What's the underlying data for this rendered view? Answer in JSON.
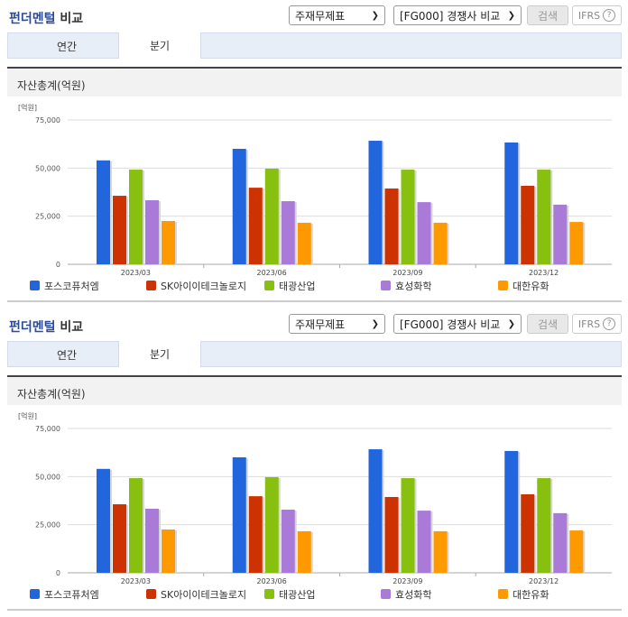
{
  "panels": [
    {
      "title_part1": "펀더멘털",
      "title_part2": "비교",
      "select_statement": "주재무제표",
      "select_group": "[FG000] 경쟁사 비교",
      "search_label": "검색",
      "ifrs_label": "IFRS",
      "help_icon": "?",
      "tabs": [
        {
          "label": "연간",
          "active": false
        },
        {
          "label": "분기",
          "active": true
        }
      ],
      "section_title": "자산총계(억원)",
      "unit_label": "[억원]"
    },
    {
      "title_part1": "펀더멘털",
      "title_part2": "비교",
      "select_statement": "주재무제표",
      "select_group": "[FG000] 경쟁사 비교",
      "search_label": "검색",
      "ifrs_label": "IFRS",
      "help_icon": "?",
      "tabs": [
        {
          "label": "연간",
          "active": false
        },
        {
          "label": "분기",
          "active": true
        }
      ],
      "section_title": "자산총계(억원)",
      "unit_label": "[억원]"
    }
  ],
  "chart_data": [
    {
      "type": "bar",
      "title": "자산총계(억원)",
      "ylabel": "[억원]",
      "xlabel": "",
      "categories": [
        "2023/03",
        "2023/06",
        "2023/09",
        "2023/12"
      ],
      "yticks": [
        "0",
        "25,000",
        "50,000",
        "75,000"
      ],
      "ylim": [
        0,
        75000
      ],
      "grid": true,
      "legend_position": "bottom",
      "series": [
        {
          "name": "포스코퓨처엠",
          "color": "#2266dd",
          "values": [
            54000,
            60000,
            64200,
            63300
          ]
        },
        {
          "name": "SK아이이테크놀로지",
          "color": "#cc3300",
          "values": [
            35600,
            39800,
            39400,
            40800
          ]
        },
        {
          "name": "태광산업",
          "color": "#88c010",
          "values": [
            49200,
            49700,
            49200,
            49200
          ]
        },
        {
          "name": "효성화학",
          "color": "#aa7ad8",
          "values": [
            33300,
            32800,
            32300,
            31000
          ]
        },
        {
          "name": "대한유화",
          "color": "#ff9900",
          "values": [
            22500,
            21600,
            21600,
            22000
          ]
        }
      ]
    },
    {
      "type": "bar",
      "title": "자산총계(억원)",
      "ylabel": "[억원]",
      "xlabel": "",
      "categories": [
        "2023/03",
        "2023/06",
        "2023/09",
        "2023/12"
      ],
      "yticks": [
        "0",
        "25,000",
        "50,000",
        "75,000"
      ],
      "ylim": [
        0,
        75000
      ],
      "grid": true,
      "legend_position": "bottom",
      "series": [
        {
          "name": "포스코퓨처엠",
          "color": "#2266dd",
          "values": [
            54000,
            60000,
            64200,
            63300
          ]
        },
        {
          "name": "SK아이이테크놀로지",
          "color": "#cc3300",
          "values": [
            35600,
            39800,
            39400,
            40800
          ]
        },
        {
          "name": "태광산업",
          "color": "#88c010",
          "values": [
            49200,
            49700,
            49200,
            49200
          ]
        },
        {
          "name": "효성화학",
          "color": "#aa7ad8",
          "values": [
            33300,
            32800,
            32300,
            31000
          ]
        },
        {
          "name": "대한유화",
          "color": "#ff9900",
          "values": [
            22500,
            21600,
            21600,
            22000
          ]
        }
      ]
    }
  ]
}
